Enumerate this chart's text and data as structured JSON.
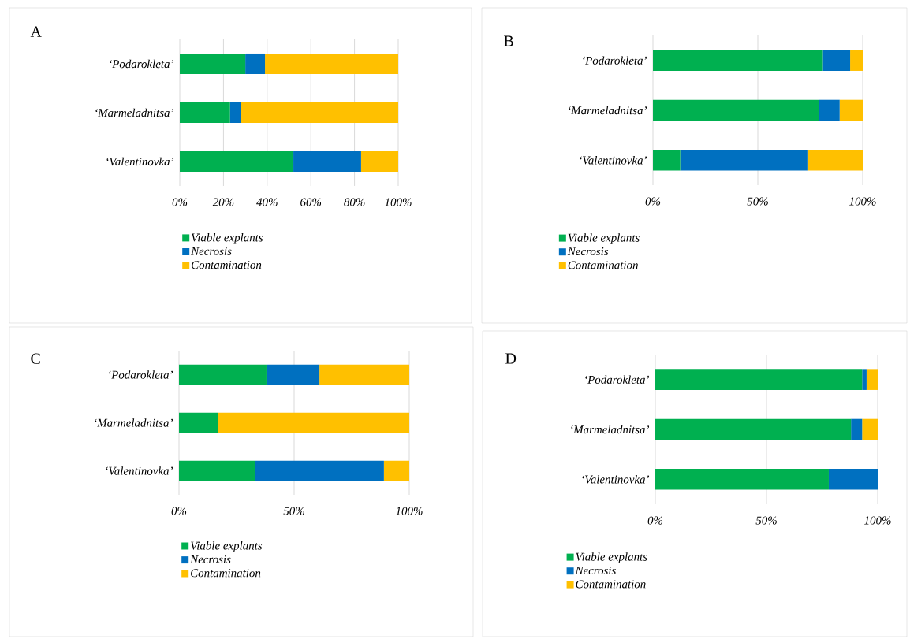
{
  "chart_data": [
    {
      "type": "bar",
      "title": "A",
      "orientation": "horizontal",
      "stacked": true,
      "categories": [
        "‘Podarokleta’",
        "‘Marmeladnitsa’",
        "‘Valentinovka’"
      ],
      "series": [
        {
          "name": "Viable explants",
          "color": "#00b050",
          "values": [
            30,
            23,
            52
          ]
        },
        {
          "name": "Necrosis",
          "color": "#0070c0",
          "values": [
            9,
            5,
            31
          ]
        },
        {
          "name": "Contamination",
          "color": "#ffc000",
          "values": [
            61,
            72,
            17
          ]
        }
      ],
      "xlim": [
        0,
        100
      ],
      "xticks": [
        {
          "value": 0,
          "label": "0%"
        },
        {
          "value": 20,
          "label": "20%"
        },
        {
          "value": 40,
          "label": "40%"
        },
        {
          "value": 60,
          "label": "60%"
        },
        {
          "value": 80,
          "label": "80%"
        },
        {
          "value": 100,
          "label": "100%"
        }
      ],
      "grid": "x",
      "legend": "bottom"
    },
    {
      "type": "bar",
      "title": "B",
      "orientation": "horizontal",
      "stacked": true,
      "categories": [
        "‘Podarokleta’",
        "‘Marmeladnitsa’",
        "‘Valentinovka’"
      ],
      "series": [
        {
          "name": "Viable explants",
          "color": "#00b050",
          "values": [
            81,
            79,
            13
          ]
        },
        {
          "name": "Necrosis",
          "color": "#0070c0",
          "values": [
            13,
            10,
            61
          ]
        },
        {
          "name": "Contamination",
          "color": "#ffc000",
          "values": [
            6,
            11,
            26
          ]
        }
      ],
      "xlim": [
        0,
        100
      ],
      "xticks": [
        {
          "value": 0,
          "label": "0%"
        },
        {
          "value": 50,
          "label": "50%"
        },
        {
          "value": 100,
          "label": "100%"
        }
      ],
      "grid": "x",
      "legend": "bottom"
    },
    {
      "type": "bar",
      "title": "C",
      "orientation": "horizontal",
      "stacked": true,
      "categories": [
        "‘Podarokleta’",
        "‘Marmeladnitsa’",
        "‘Valentinovka’"
      ],
      "series": [
        {
          "name": "Viable explants",
          "color": "#00b050",
          "values": [
            38,
            17,
            33
          ]
        },
        {
          "name": "Necrosis",
          "color": "#0070c0",
          "values": [
            23,
            0,
            56
          ]
        },
        {
          "name": "Contamination",
          "color": "#ffc000",
          "values": [
            39,
            83,
            11
          ]
        }
      ],
      "xlim": [
        0,
        100
      ],
      "xticks": [
        {
          "value": 0,
          "label": "0%"
        },
        {
          "value": 50,
          "label": "50%"
        },
        {
          "value": 100,
          "label": "100%"
        }
      ],
      "grid": "x",
      "legend": "bottom"
    },
    {
      "type": "bar",
      "title": "D",
      "orientation": "horizontal",
      "stacked": true,
      "categories": [
        "‘Podarokleta’",
        "‘Marmeladnitsa’",
        "‘Valentinovka’"
      ],
      "series": [
        {
          "name": "Viable explants",
          "color": "#00b050",
          "values": [
            93,
            88,
            78
          ]
        },
        {
          "name": "Necrosis",
          "color": "#0070c0",
          "values": [
            2,
            5,
            22
          ]
        },
        {
          "name": "Contamination",
          "color": "#ffc000",
          "values": [
            5,
            7,
            0
          ]
        }
      ],
      "xlim": [
        0,
        100
      ],
      "xticks": [
        {
          "value": 0,
          "label": "0%"
        },
        {
          "value": 50,
          "label": "50%"
        },
        {
          "value": 100,
          "label": "100%"
        }
      ],
      "grid": "x",
      "legend": "bottom"
    }
  ]
}
